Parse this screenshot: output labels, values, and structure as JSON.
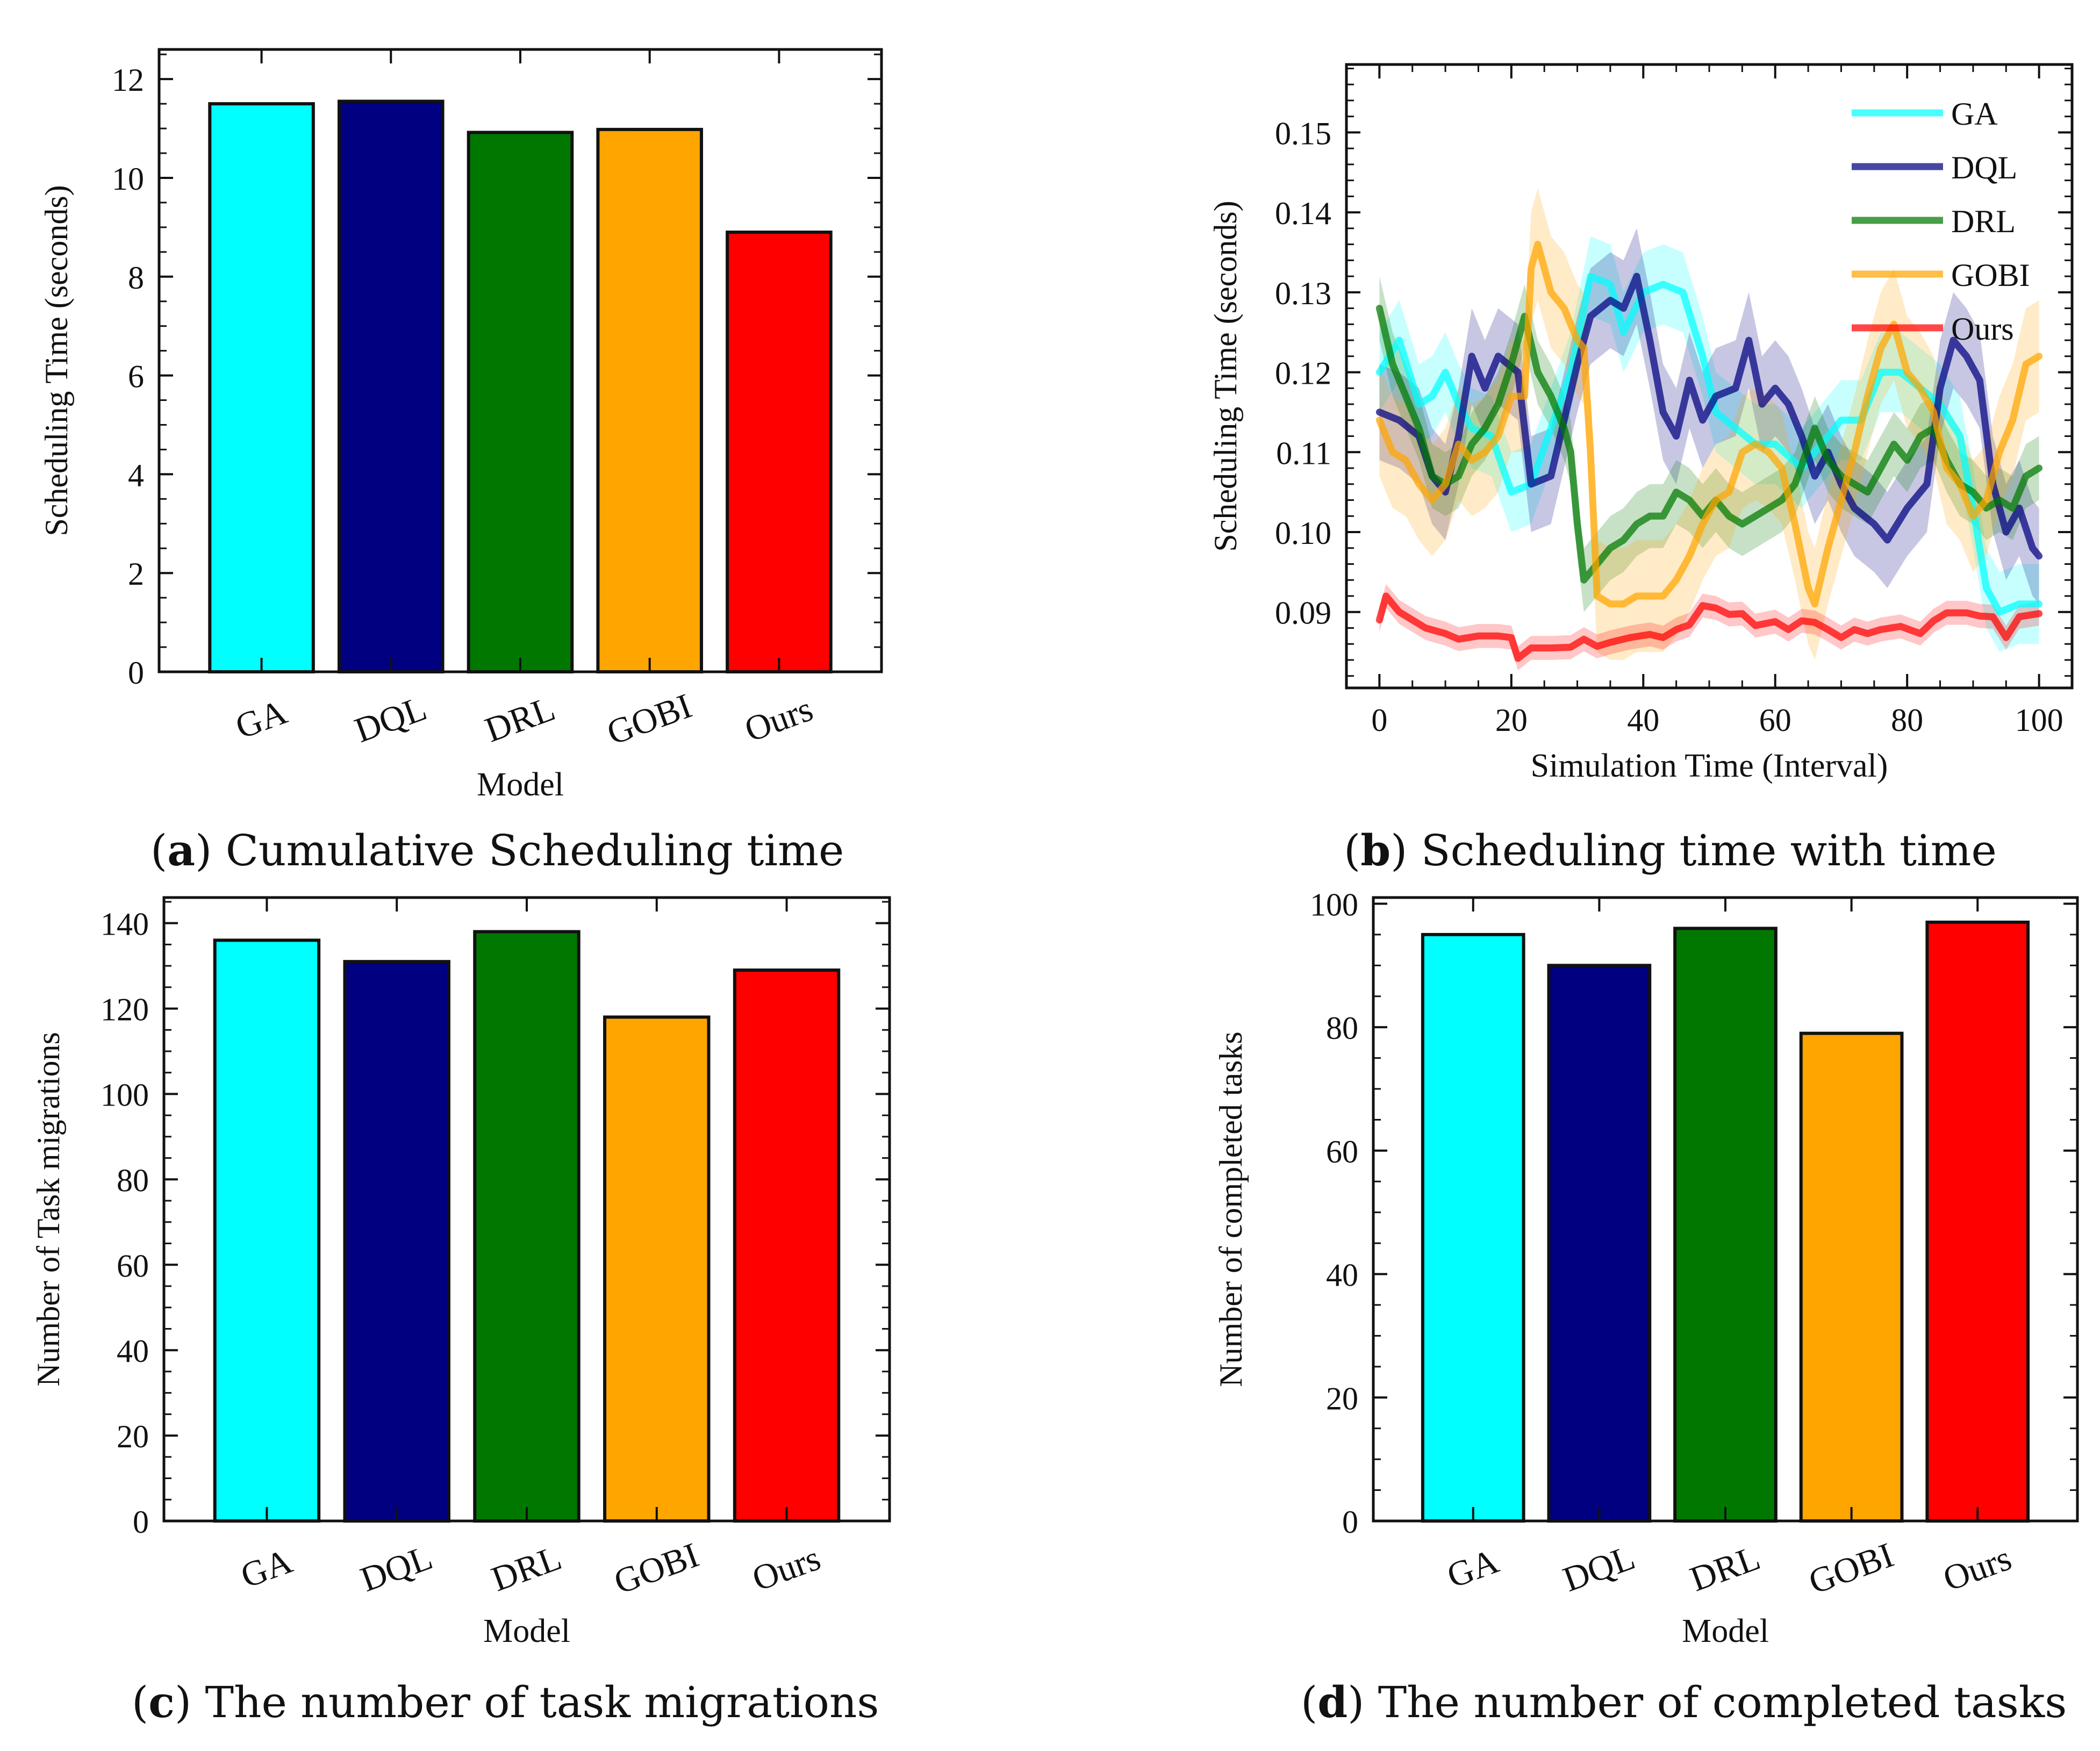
{
  "colors": {
    "GA": "#00ffff",
    "DQL": "#000080",
    "DRL": "#007800",
    "GOBI": "#ffa500",
    "Ours": "#ff0000"
  },
  "captions": {
    "a": {
      "letter": "a",
      "text": "Cumulative Scheduling time"
    },
    "b": {
      "letter": "b",
      "text": "Scheduling time with time"
    },
    "c": {
      "letter": "c",
      "text": "The number of task migrations"
    },
    "d": {
      "letter": "d",
      "text": "The number of completed tasks"
    }
  },
  "chart_data": [
    {
      "id": "a",
      "type": "bar",
      "xlabel": "Model",
      "ylabel": "Scheduling Time (seconds)",
      "categories": [
        "GA",
        "DQL",
        "DRL",
        "GOBI",
        "Ours"
      ],
      "values": [
        11.5,
        11.55,
        10.92,
        10.98,
        8.9
      ],
      "ylim": [
        0,
        12.6
      ],
      "yticks": [
        0,
        2,
        4,
        6,
        8,
        10,
        12
      ],
      "ytick_labels": [
        "0",
        "2",
        "4",
        "6",
        "8",
        "10",
        "12"
      ]
    },
    {
      "id": "b",
      "type": "line",
      "xlabel": "Simulation Time (Interval)",
      "ylabel": "Scheduling Time (seconds)",
      "xlim": [
        -5,
        105
      ],
      "ylim": [
        0.0805,
        0.1585
      ],
      "xticks": [
        0,
        20,
        40,
        60,
        80,
        100
      ],
      "xtick_labels": [
        "0",
        "20",
        "40",
        "60",
        "80",
        "100"
      ],
      "yticks": [
        0.09,
        0.1,
        0.11,
        0.12,
        0.13,
        0.14,
        0.15
      ],
      "ytick_labels": [
        "0.09",
        "0.10",
        "0.11",
        "0.12",
        "0.13",
        "0.14",
        "0.15"
      ],
      "legend_position": "top-right",
      "series": [
        {
          "name": "GA",
          "band": 0.005,
          "points": [
            [
              0,
              0.12
            ],
            [
              3,
              0.124
            ],
            [
              6,
              0.116
            ],
            [
              8,
              0.117
            ],
            [
              10,
              0.12
            ],
            [
              12,
              0.116
            ],
            [
              14,
              0.113
            ],
            [
              17,
              0.112
            ],
            [
              20,
              0.105
            ],
            [
              23,
              0.106
            ],
            [
              26,
              0.113
            ],
            [
              29,
              0.12
            ],
            [
              32,
              0.132
            ],
            [
              35,
              0.131
            ],
            [
              37,
              0.125
            ],
            [
              40,
              0.13
            ],
            [
              43,
              0.131
            ],
            [
              46,
              0.13
            ],
            [
              49,
              0.122
            ],
            [
              51,
              0.115
            ],
            [
              54,
              0.113
            ],
            [
              57,
              0.111
            ],
            [
              60,
              0.111
            ],
            [
              64,
              0.108
            ],
            [
              67,
              0.111
            ],
            [
              70,
              0.114
            ],
            [
              73,
              0.114
            ],
            [
              76,
              0.12
            ],
            [
              79,
              0.12
            ],
            [
              82,
              0.118
            ],
            [
              85,
              0.116
            ],
            [
              88,
              0.112
            ],
            [
              90,
              0.103
            ],
            [
              92,
              0.093
            ],
            [
              94,
              0.09
            ],
            [
              97,
              0.091
            ],
            [
              100,
              0.091
            ]
          ]
        },
        {
          "name": "DQL",
          "band": 0.006,
          "points": [
            [
              0,
              0.115
            ],
            [
              3,
              0.114
            ],
            [
              6,
              0.112
            ],
            [
              8,
              0.107
            ],
            [
              10,
              0.105
            ],
            [
              12,
              0.112
            ],
            [
              14,
              0.122
            ],
            [
              16,
              0.118
            ],
            [
              18,
              0.122
            ],
            [
              21,
              0.12
            ],
            [
              23,
              0.106
            ],
            [
              26,
              0.107
            ],
            [
              28,
              0.114
            ],
            [
              30,
              0.121
            ],
            [
              32,
              0.127
            ],
            [
              35,
              0.129
            ],
            [
              37,
              0.128
            ],
            [
              39,
              0.132
            ],
            [
              41,
              0.124
            ],
            [
              43,
              0.115
            ],
            [
              45,
              0.112
            ],
            [
              47,
              0.119
            ],
            [
              49,
              0.114
            ],
            [
              51,
              0.117
            ],
            [
              54,
              0.118
            ],
            [
              56,
              0.124
            ],
            [
              58,
              0.116
            ],
            [
              60,
              0.118
            ],
            [
              62,
              0.116
            ],
            [
              64,
              0.112
            ],
            [
              66,
              0.107
            ],
            [
              68,
              0.11
            ],
            [
              70,
              0.106
            ],
            [
              72,
              0.103
            ],
            [
              75,
              0.101
            ],
            [
              77,
              0.099
            ],
            [
              80,
              0.103
            ],
            [
              83,
              0.106
            ],
            [
              85,
              0.118
            ],
            [
              87,
              0.124
            ],
            [
              89,
              0.122
            ],
            [
              91,
              0.119
            ],
            [
              93,
              0.106
            ],
            [
              95,
              0.1
            ],
            [
              97,
              0.103
            ],
            [
              99,
              0.098
            ],
            [
              100,
              0.097
            ]
          ]
        },
        {
          "name": "DRL",
          "band": 0.004,
          "points": [
            [
              0,
              0.128
            ],
            [
              2,
              0.121
            ],
            [
              4,
              0.117
            ],
            [
              6,
              0.113
            ],
            [
              8,
              0.107
            ],
            [
              10,
              0.106
            ],
            [
              12,
              0.107
            ],
            [
              14,
              0.111
            ],
            [
              16,
              0.113
            ],
            [
              18,
              0.116
            ],
            [
              20,
              0.121
            ],
            [
              22,
              0.127
            ],
            [
              24,
              0.12
            ],
            [
              26,
              0.117
            ],
            [
              28,
              0.113
            ],
            [
              29,
              0.11
            ],
            [
              30,
              0.101
            ],
            [
              31,
              0.094
            ],
            [
              33,
              0.096
            ],
            [
              35,
              0.098
            ],
            [
              37,
              0.099
            ],
            [
              39,
              0.101
            ],
            [
              41,
              0.102
            ],
            [
              43,
              0.102
            ],
            [
              45,
              0.105
            ],
            [
              47,
              0.104
            ],
            [
              49,
              0.102
            ],
            [
              51,
              0.104
            ],
            [
              53,
              0.102
            ],
            [
              55,
              0.101
            ],
            [
              57,
              0.102
            ],
            [
              59,
              0.103
            ],
            [
              61,
              0.104
            ],
            [
              63,
              0.106
            ],
            [
              66,
              0.113
            ],
            [
              68,
              0.109
            ],
            [
              70,
              0.107
            ],
            [
              72,
              0.106
            ],
            [
              74,
              0.105
            ],
            [
              76,
              0.108
            ],
            [
              78,
              0.111
            ],
            [
              80,
              0.109
            ],
            [
              82,
              0.112
            ],
            [
              84,
              0.113
            ],
            [
              86,
              0.109
            ],
            [
              88,
              0.106
            ],
            [
              90,
              0.105
            ],
            [
              92,
              0.103
            ],
            [
              94,
              0.104
            ],
            [
              96,
              0.103
            ],
            [
              98,
              0.107
            ],
            [
              100,
              0.108
            ]
          ]
        },
        {
          "name": "GOBI",
          "band": 0.007,
          "points": [
            [
              0,
              0.114
            ],
            [
              2,
              0.11
            ],
            [
              4,
              0.109
            ],
            [
              6,
              0.106
            ],
            [
              8,
              0.104
            ],
            [
              10,
              0.106
            ],
            [
              12,
              0.111
            ],
            [
              14,
              0.109
            ],
            [
              16,
              0.11
            ],
            [
              18,
              0.112
            ],
            [
              20,
              0.117
            ],
            [
              22,
              0.117
            ],
            [
              23,
              0.133
            ],
            [
              24,
              0.136
            ],
            [
              26,
              0.13
            ],
            [
              28,
              0.128
            ],
            [
              30,
              0.124
            ],
            [
              31,
              0.123
            ],
            [
              32,
              0.11
            ],
            [
              33,
              0.092
            ],
            [
              35,
              0.091
            ],
            [
              37,
              0.091
            ],
            [
              39,
              0.092
            ],
            [
              41,
              0.092
            ],
            [
              43,
              0.092
            ],
            [
              45,
              0.094
            ],
            [
              47,
              0.097
            ],
            [
              49,
              0.101
            ],
            [
              51,
              0.104
            ],
            [
              53,
              0.105
            ],
            [
              55,
              0.11
            ],
            [
              57,
              0.111
            ],
            [
              59,
              0.11
            ],
            [
              61,
              0.108
            ],
            [
              63,
              0.101
            ],
            [
              65,
              0.093
            ],
            [
              66,
              0.091
            ],
            [
              68,
              0.098
            ],
            [
              70,
              0.104
            ],
            [
              72,
              0.11
            ],
            [
              74,
              0.117
            ],
            [
              76,
              0.123
            ],
            [
              78,
              0.126
            ],
            [
              80,
              0.12
            ],
            [
              82,
              0.118
            ],
            [
              84,
              0.115
            ],
            [
              86,
              0.108
            ],
            [
              88,
              0.106
            ],
            [
              90,
              0.102
            ],
            [
              92,
              0.104
            ],
            [
              94,
              0.11
            ],
            [
              96,
              0.114
            ],
            [
              98,
              0.121
            ],
            [
              100,
              0.122
            ]
          ]
        },
        {
          "name": "Ours",
          "band": 0.0015,
          "points": [
            [
              0,
              0.089
            ],
            [
              1,
              0.092
            ],
            [
              3,
              0.09
            ],
            [
              5,
              0.089
            ],
            [
              7,
              0.088
            ],
            [
              10,
              0.0873
            ],
            [
              12,
              0.0866
            ],
            [
              15,
              0.087
            ],
            [
              18,
              0.087
            ],
            [
              20,
              0.0868
            ],
            [
              21,
              0.0842
            ],
            [
              23,
              0.0855
            ],
            [
              26,
              0.0855
            ],
            [
              29,
              0.0856
            ],
            [
              31,
              0.0866
            ],
            [
              33,
              0.0857
            ],
            [
              35,
              0.0862
            ],
            [
              38,
              0.0868
            ],
            [
              41,
              0.0872
            ],
            [
              43,
              0.0868
            ],
            [
              45,
              0.0878
            ],
            [
              47,
              0.0884
            ],
            [
              49,
              0.0908
            ],
            [
              51,
              0.0905
            ],
            [
              53,
              0.0897
            ],
            [
              55,
              0.0898
            ],
            [
              57,
              0.0883
            ],
            [
              60,
              0.0888
            ],
            [
              62,
              0.0878
            ],
            [
              64,
              0.0889
            ],
            [
              66,
              0.0887
            ],
            [
              68,
              0.0878
            ],
            [
              70,
              0.0868
            ],
            [
              72,
              0.0878
            ],
            [
              74,
              0.0873
            ],
            [
              76,
              0.0878
            ],
            [
              79,
              0.0882
            ],
            [
              82,
              0.0873
            ],
            [
              84,
              0.0889
            ],
            [
              86,
              0.0899
            ],
            [
              89,
              0.0899
            ],
            [
              91,
              0.0895
            ],
            [
              93,
              0.0894
            ],
            [
              95,
              0.0868
            ],
            [
              97,
              0.0894
            ],
            [
              100,
              0.0898
            ]
          ]
        }
      ]
    },
    {
      "id": "c",
      "type": "bar",
      "xlabel": "Model",
      "ylabel": "Number of Task migrations",
      "categories": [
        "GA",
        "DQL",
        "DRL",
        "GOBI",
        "Ours"
      ],
      "values": [
        136,
        131,
        138,
        118,
        129
      ],
      "ylim": [
        0,
        146
      ],
      "yticks": [
        0,
        20,
        40,
        60,
        80,
        100,
        120,
        140
      ],
      "ytick_labels": [
        "0",
        "20",
        "40",
        "60",
        "80",
        "100",
        "120",
        "140"
      ]
    },
    {
      "id": "d",
      "type": "bar",
      "xlabel": "Model",
      "ylabel": "Number of completed tasks",
      "categories": [
        "GA",
        "DQL",
        "DRL",
        "GOBI",
        "Ours"
      ],
      "values": [
        95,
        90,
        96,
        79,
        97
      ],
      "ylim": [
        0,
        101
      ],
      "yticks": [
        0,
        20,
        40,
        60,
        80,
        100
      ],
      "ytick_labels": [
        "0",
        "20",
        "40",
        "60",
        "80",
        "100"
      ]
    }
  ]
}
